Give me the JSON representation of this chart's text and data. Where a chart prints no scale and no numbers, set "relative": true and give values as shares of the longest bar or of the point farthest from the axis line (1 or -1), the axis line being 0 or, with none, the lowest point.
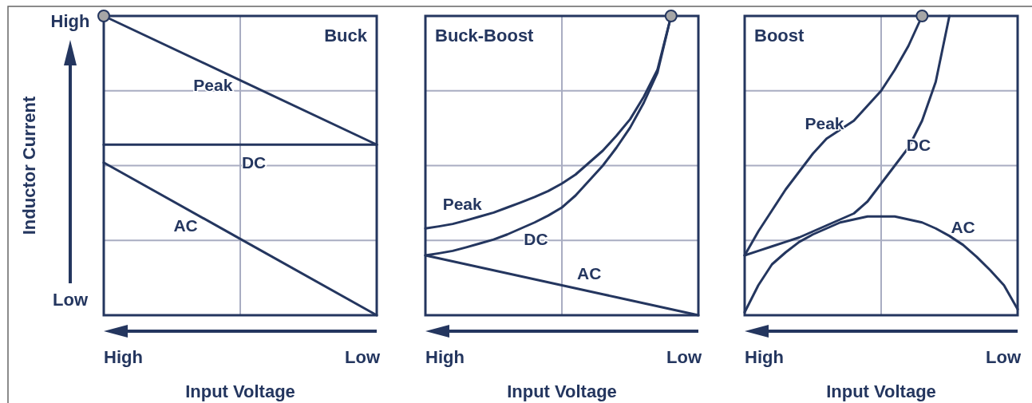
{
  "chart_data": [
    {
      "type": "line",
      "title": "Buck",
      "xlabel": "Input Voltage",
      "ylabel": "Inductor Current",
      "relative": true,
      "grid": true,
      "line_style": "solid",
      "annotations": [
        "High",
        "Low",
        "High",
        "Low"
      ],
      "categories": [
        null,
        null,
        null
      ],
      "series": [
        {
          "name": "Peak",
          "color": "#24365f",
          "values": [
            1.0,
            0.785,
            0.57
          ]
        },
        {
          "name": "DC",
          "color": "#24365f",
          "values": [
            0.57,
            0.57,
            0.57
          ]
        },
        {
          "name": "AC",
          "color": "#24365f",
          "values": [
            0.51,
            0.255,
            0.0
          ]
        }
      ]
    },
    {
      "type": "line",
      "title": "Buck-Boost",
      "xlabel": "Input Voltage",
      "relative": true,
      "grid": true,
      "line_style": "solid",
      "annotations": [
        "High",
        "Low"
      ],
      "categories": [
        null,
        null,
        null,
        null,
        null,
        null,
        null,
        null,
        null,
        null,
        null,
        null,
        null,
        null,
        null,
        null,
        null,
        null,
        null,
        null,
        null
      ],
      "series": [
        {
          "name": "Peak",
          "color": "#24365f",
          "values": [
            0.29,
            0.297,
            0.305,
            0.317,
            0.33,
            0.343,
            0.36,
            0.377,
            0.395,
            0.415,
            0.44,
            0.47,
            0.51,
            0.55,
            0.6,
            0.655,
            0.73,
            0.82,
            1.0,
            null,
            null
          ]
        },
        {
          "name": "DC",
          "color": "#24365f",
          "values": [
            0.2,
            0.207,
            0.215,
            0.227,
            0.24,
            0.253,
            0.27,
            0.29,
            0.31,
            0.333,
            0.36,
            0.4,
            0.45,
            0.5,
            0.56,
            0.627,
            0.71,
            0.81,
            1.0,
            null,
            null
          ]
        },
        {
          "name": "AC",
          "color": "#24365f",
          "values": [
            0.2,
            0.19,
            0.18,
            0.17,
            0.16,
            0.15,
            0.14,
            0.13,
            0.12,
            0.11,
            0.1,
            0.09,
            0.08,
            0.07,
            0.06,
            0.05,
            0.04,
            0.03,
            0.02,
            0.01,
            0.0
          ]
        }
      ]
    },
    {
      "type": "line",
      "title": "Boost",
      "xlabel": "Input Voltage",
      "relative": true,
      "grid": true,
      "line_style": "solid",
      "annotations": [
        "High",
        "Low"
      ],
      "categories": [
        null,
        null,
        null,
        null,
        null,
        null,
        null,
        null,
        null,
        null,
        null,
        null,
        null,
        null,
        null,
        null,
        null,
        null,
        null,
        null,
        null
      ],
      "series": [
        {
          "name": "Peak",
          "color": "#24365f",
          "values": [
            0.2,
            0.28,
            0.35,
            0.42,
            0.48,
            0.54,
            0.59,
            0.62,
            0.65,
            0.7,
            0.75,
            0.82,
            0.9,
            1.0,
            null,
            null,
            null,
            null,
            null,
            null,
            null
          ]
        },
        {
          "name": "DC",
          "color": "#24365f",
          "values": [
            0.2,
            0.215,
            0.23,
            0.245,
            0.26,
            0.28,
            0.3,
            0.32,
            0.34,
            0.38,
            0.44,
            0.5,
            0.56,
            0.65,
            0.78,
            1.0,
            null,
            null,
            null,
            null,
            null
          ]
        },
        {
          "name": "AC",
          "color": "#24365f",
          "values": [
            0.01,
            0.1,
            0.17,
            0.21,
            0.245,
            0.27,
            0.29,
            0.31,
            0.32,
            0.33,
            0.33,
            0.33,
            0.32,
            0.31,
            0.29,
            0.265,
            0.235,
            0.195,
            0.15,
            0.1,
            0.02
          ]
        }
      ]
    }
  ]
}
